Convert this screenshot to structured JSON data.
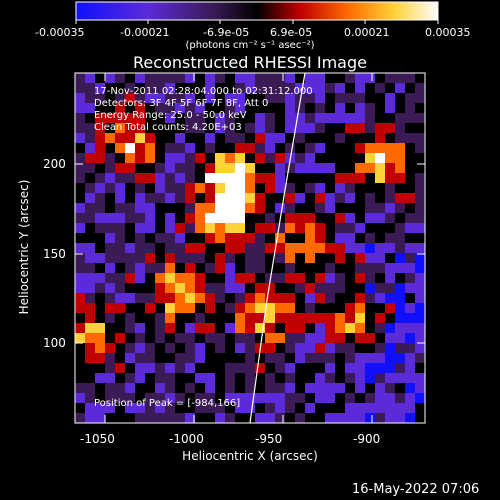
{
  "colorbar": {
    "tick_labels": [
      "-0.00035",
      "-0.00021",
      "-6.9e-05",
      "6.9e-05",
      "0.00021",
      "0.00035"
    ],
    "units_label": "(photons cm⁻² s⁻¹ asec⁻²)",
    "colors": [
      "#1010ff",
      "#5b2bd8",
      "#3a1b55",
      "#000000",
      "#c00000",
      "#ff6a00",
      "#ffd23a",
      "#ffffff"
    ]
  },
  "plot": {
    "title": "Reconstructed RHESSI Image",
    "xlabel": "Heliocentric X (arcsec)",
    "ylabel": "Heliocentric Y (arcsec)",
    "x_ticks": [
      "-1050",
      "-1000",
      "-950",
      "-900"
    ],
    "y_ticks": [
      "100",
      "150",
      "200"
    ],
    "info_lines": [
      "17-Nov-2011 02:28:04.000 to 02:31:12.000",
      "Detectors: 3F 4F 5F 6F 7F 8F, Att 0",
      "Energy Range: 25.0 - 50.0 keV",
      "Clean    Total counts: 4.20E+03"
    ],
    "peak_label": "Position of Peak = [-984,166]"
  },
  "footer_date": "16-May-2022 07:06"
}
